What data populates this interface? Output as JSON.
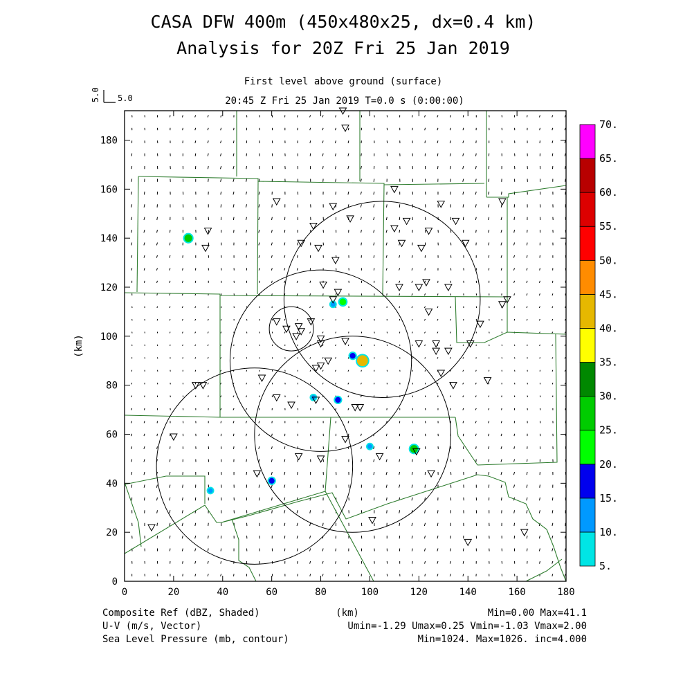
{
  "header": {
    "title_line1": "CASA DFW 400m (450x480x25, dx=0.4 km)",
    "title_line2": "Analysis for 20Z Fri 25 Jan 2019",
    "level": "First level above ground (surface)",
    "time": "20:45 Z Fri 25 Jan 2019    T=0.0 s (0:00:00)",
    "ref_vec_vertical": "5.0",
    "ref_vec_horizontal": "5.0"
  },
  "axes": {
    "xlabel": "(km)",
    "ylabel": "(km)",
    "xlim": [
      0,
      180
    ],
    "ylim": [
      0,
      192
    ],
    "xticks": [
      "0",
      "20",
      "40",
      "60",
      "80",
      "100",
      "120",
      "140",
      "160",
      "180"
    ],
    "yticks": [
      "0",
      "20",
      "40",
      "60",
      "80",
      "100",
      "120",
      "140",
      "160",
      "180"
    ]
  },
  "colorbar": {
    "labels": [
      "5.",
      "10.",
      "15.",
      "20.",
      "25.",
      "30.",
      "35.",
      "40.",
      "45.",
      "50.",
      "55.",
      "60.",
      "65.",
      "70."
    ],
    "colors": [
      "#00e5e5",
      "#0099ff",
      "#0000ee",
      "#00ff00",
      "#00cc00",
      "#008800",
      "#ffff00",
      "#e6b800",
      "#ff8c00",
      "#ff0000",
      "#dd0000",
      "#b80000",
      "#ff00ff"
    ]
  },
  "footer": {
    "field1": "Composite Ref (dBZ, Shaded)",
    "field1_stats": "Min=0.00 Max=41.1",
    "field2": "U-V (m/s, Vector)",
    "field2_stats": "Umin=-1.29 Umax=0.25 Vmin=-1.03 Vmax=2.00",
    "field3": "Sea Level Pressure (mb, contour)",
    "field3_stats": "Min=1024. Max=1026. inc=4.000",
    "xunits": "(km)"
  },
  "chart_data": {
    "type": "heatmap",
    "wind": {
      "u_range": [
        -1.29,
        0.25
      ],
      "v_range": [
        -1.03,
        2.0
      ],
      "dominant_direction": "from north (southward)"
    },
    "radar_range_rings_km": [
      {
        "cx": 53,
        "cy": 47,
        "r": 40
      },
      {
        "cx": 80,
        "cy": 90,
        "r": 37
      },
      {
        "cx": 105,
        "cy": 115,
        "r": 40
      },
      {
        "cx": 93,
        "cy": 60,
        "r": 40
      },
      {
        "cx": 68,
        "cy": 103,
        "r": 9
      }
    ],
    "reflectivity_cells": [
      {
        "x": 26,
        "y": 140,
        "dbz": 25
      },
      {
        "x": 85,
        "y": 113,
        "dbz": 10
      },
      {
        "x": 89,
        "y": 114,
        "dbz": 20
      },
      {
        "x": 93,
        "y": 92,
        "dbz": 15
      },
      {
        "x": 97,
        "y": 90,
        "dbz": 41.1
      },
      {
        "x": 87,
        "y": 74,
        "dbz": 15
      },
      {
        "x": 118,
        "y": 54,
        "dbz": 25
      },
      {
        "x": 100,
        "y": 55,
        "dbz": 10
      },
      {
        "x": 60,
        "y": 41,
        "dbz": 15
      },
      {
        "x": 35,
        "y": 37,
        "dbz": 10
      },
      {
        "x": 77,
        "y": 75,
        "dbz": 10
      }
    ],
    "stations_km": [
      [
        89,
        192
      ],
      [
        90,
        185
      ],
      [
        62,
        155
      ],
      [
        85,
        153
      ],
      [
        110,
        160
      ],
      [
        129,
        154
      ],
      [
        154,
        155
      ],
      [
        34,
        143
      ],
      [
        77,
        145
      ],
      [
        92,
        148
      ],
      [
        110,
        144
      ],
      [
        115,
        147
      ],
      [
        124,
        143
      ],
      [
        135,
        147
      ],
      [
        113,
        138
      ],
      [
        121,
        136
      ],
      [
        139,
        138
      ],
      [
        33,
        136
      ],
      [
        72,
        138
      ],
      [
        79,
        136
      ],
      [
        86,
        131
      ],
      [
        81,
        121
      ],
      [
        112,
        120
      ],
      [
        120,
        120
      ],
      [
        123,
        122
      ],
      [
        132,
        120
      ],
      [
        87,
        118
      ],
      [
        85,
        115
      ],
      [
        156,
        115
      ],
      [
        154,
        113
      ],
      [
        124,
        110
      ],
      [
        145,
        105
      ],
      [
        62,
        106
      ],
      [
        66,
        103
      ],
      [
        71,
        104
      ],
      [
        70,
        100
      ],
      [
        76,
        106
      ],
      [
        72,
        102
      ],
      [
        80,
        99
      ],
      [
        80,
        97
      ],
      [
        90,
        98
      ],
      [
        120,
        97
      ],
      [
        127,
        97
      ],
      [
        127,
        94
      ],
      [
        132,
        94
      ],
      [
        141,
        97
      ],
      [
        78,
        87
      ],
      [
        80,
        88
      ],
      [
        83,
        90
      ],
      [
        129,
        85
      ],
      [
        148,
        82
      ],
      [
        134,
        80
      ],
      [
        29,
        80
      ],
      [
        32,
        80
      ],
      [
        56,
        83
      ],
      [
        62,
        75
      ],
      [
        68,
        72
      ],
      [
        78,
        74
      ],
      [
        94,
        71
      ],
      [
        96,
        71
      ],
      [
        20,
        59
      ],
      [
        90,
        58
      ],
      [
        119,
        53
      ],
      [
        104,
        51
      ],
      [
        71,
        51
      ],
      [
        80,
        50
      ],
      [
        125,
        44
      ],
      [
        54,
        44
      ],
      [
        101,
        25
      ],
      [
        140,
        16
      ],
      [
        11,
        22
      ],
      [
        163,
        20
      ]
    ]
  }
}
